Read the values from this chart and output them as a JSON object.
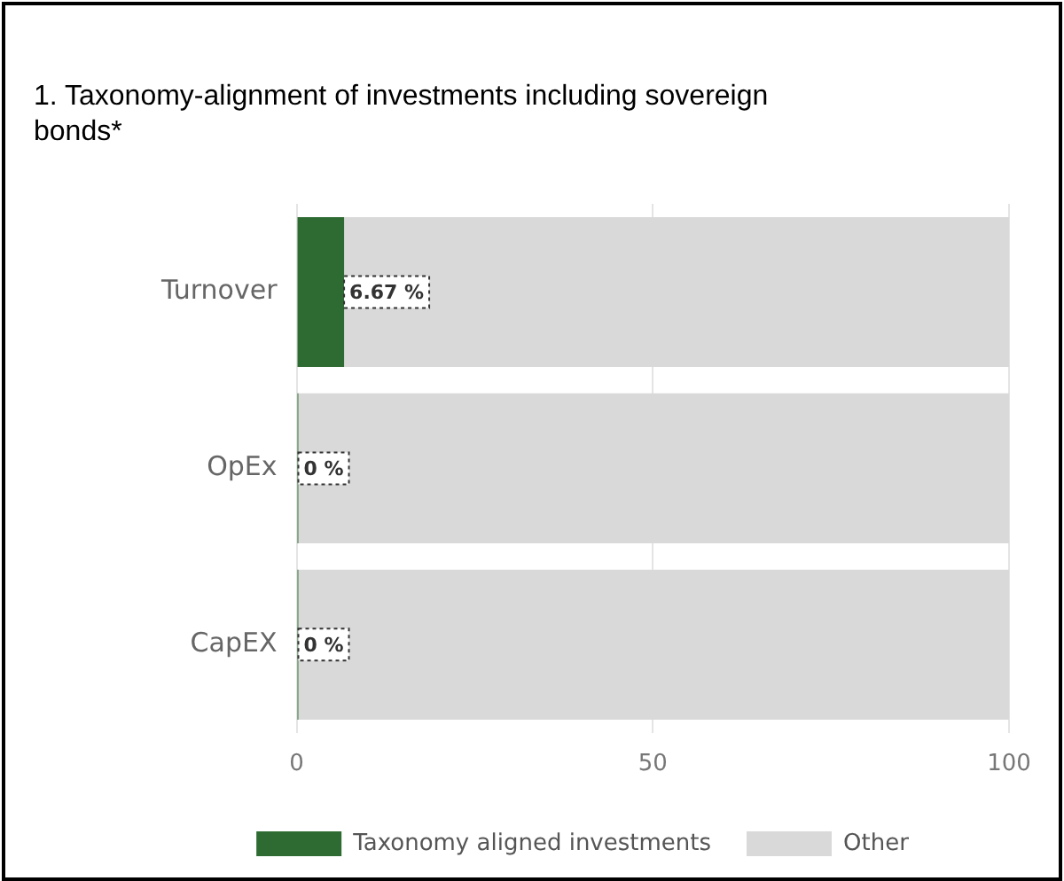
{
  "chart_data": {
    "type": "bar",
    "orientation": "horizontal",
    "stacked": true,
    "title": "1. Taxonomy-alignment of investments including sovereign bonds*",
    "categories": [
      "Turnover",
      "OpEx",
      "CapEX"
    ],
    "series": [
      {
        "name": "Taxonomy aligned investments",
        "color": "#2e6b32",
        "values": [
          6.67,
          0,
          0
        ],
        "value_labels": [
          "6.67 %",
          "0 %",
          "0 %"
        ]
      },
      {
        "name": "Other",
        "color": "#d9d9d9",
        "values": [
          93.33,
          100,
          100
        ]
      }
    ],
    "xlim": [
      0,
      100
    ],
    "xticks": [
      0,
      50,
      100
    ],
    "grid": "x",
    "legend": "bottom"
  }
}
